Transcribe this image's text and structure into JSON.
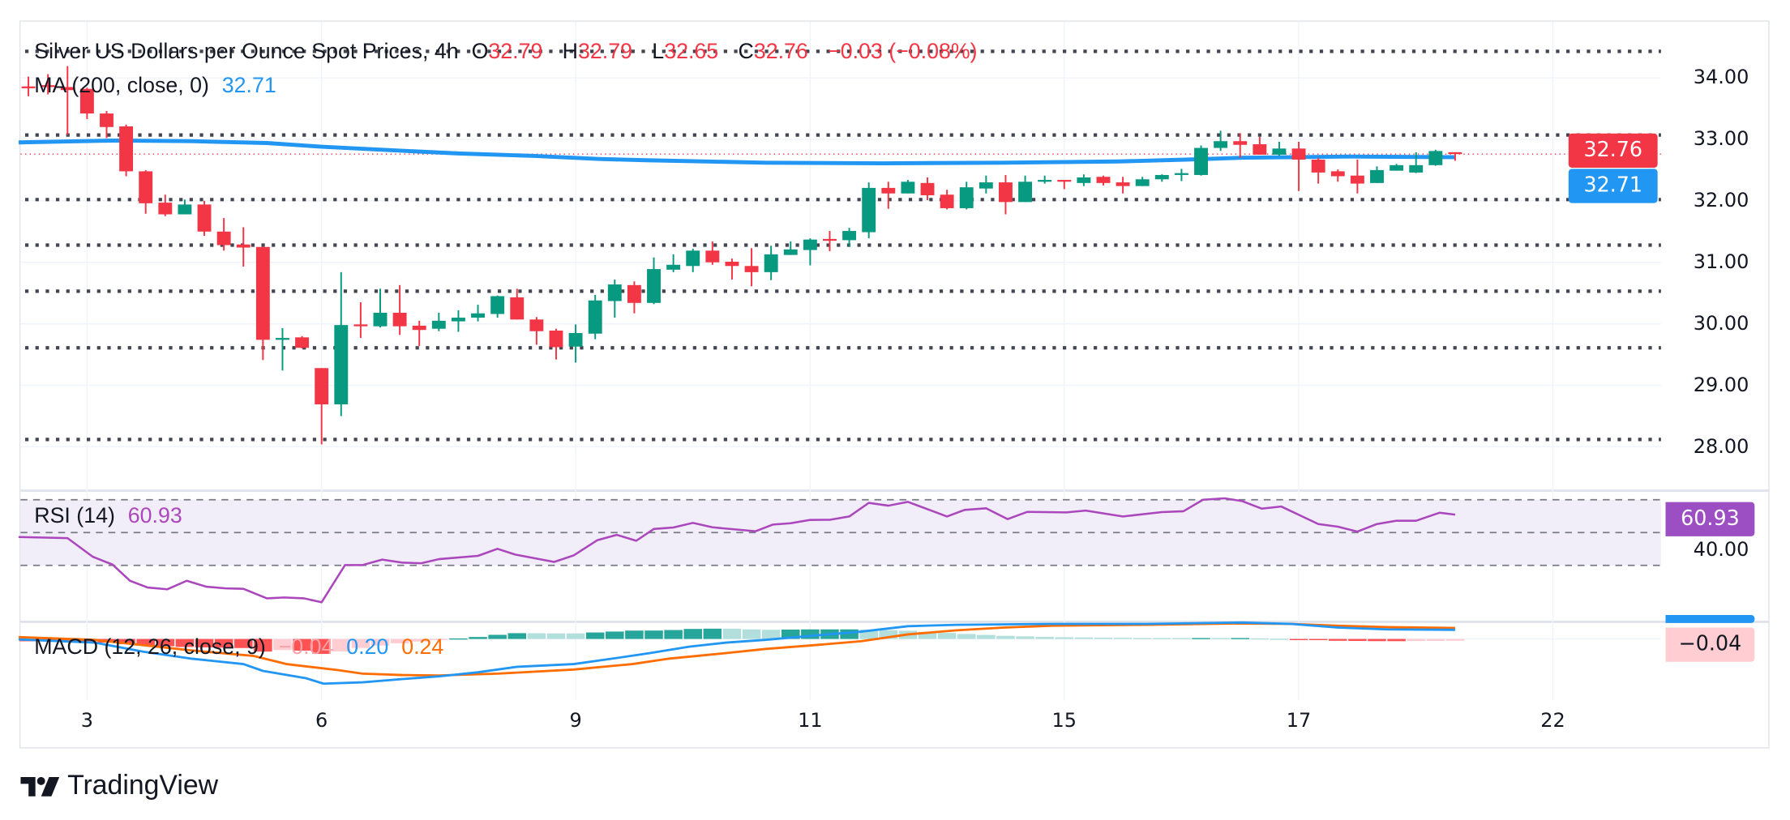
{
  "header": {
    "title": "Silver US Dollars per Ounce Spot Prices, 4h",
    "o_label": "O",
    "o": "32.79",
    "h_label": "H",
    "h": "32.79",
    "l_label": "L",
    "l": "32.65",
    "c_label": "C",
    "c": "32.76",
    "change": "−0.03 (−0.08%)"
  },
  "ma_legend": {
    "label": "MA (200, close, 0)",
    "value": "32.71"
  },
  "rsi_legend": {
    "label": "RSI (14)",
    "value": "60.93"
  },
  "macd_legend": {
    "label": "MACD (12, 26, close, 9)",
    "hist": "−0.04",
    "macd": "0.20",
    "signal": "0.24"
  },
  "price_axis": {
    "ticks": [
      {
        "label": "34.00",
        "value": 34
      },
      {
        "label": "33.00",
        "value": 33
      },
      {
        "label": "32.00",
        "value": 32
      },
      {
        "label": "31.00",
        "value": 31
      },
      {
        "label": "30.00",
        "value": 30
      },
      {
        "label": "29.00",
        "value": 29
      },
      {
        "label": "28.00",
        "value": 28
      }
    ],
    "last_price": "32.76",
    "ma_value": "32.71"
  },
  "rsi_axis": {
    "tick": "40.00",
    "value": "60.93"
  },
  "macd_axis": {
    "value": "−0.04"
  },
  "time_axis": [
    {
      "label": "3",
      "bar": 4
    },
    {
      "label": "6",
      "bar": 16
    },
    {
      "label": "9",
      "bar": 29
    },
    {
      "label": "11",
      "bar": 41
    },
    {
      "label": "15",
      "bar": 54
    },
    {
      "label": "17",
      "bar": 66
    },
    {
      "label": "22",
      "bar": 79
    }
  ],
  "brand": "TradingView",
  "colors": {
    "up": "#089981",
    "down": "#f23645",
    "ma": "#2196f3",
    "rsi": "#ab47bc",
    "macd": "#2196f3",
    "signal": "#ff6d00",
    "level": "#434651",
    "hist_up_strong": "#26a69a",
    "hist_up_weak": "#b2dfdb",
    "hist_down_strong": "#ff5252",
    "hist_down_weak": "#ffcdd2"
  },
  "chart_data": {
    "type": "candlestick",
    "title": "Silver US Dollars per Ounce Spot Prices, 4h",
    "ylim": [
      27.6,
      34.6
    ],
    "grid": true,
    "candles": [
      [
        33.86,
        34.02,
        33.7,
        33.84
      ],
      [
        33.88,
        34.06,
        33.73,
        33.86
      ],
      [
        33.85,
        34.19,
        33.07,
        33.8
      ],
      [
        33.82,
        33.84,
        33.33,
        33.42
      ],
      [
        33.42,
        33.46,
        33.02,
        33.2
      ],
      [
        33.21,
        33.24,
        32.4,
        32.48
      ],
      [
        32.48,
        32.5,
        31.79,
        31.96
      ],
      [
        31.97,
        32.1,
        31.75,
        31.78
      ],
      [
        31.78,
        32.02,
        31.78,
        31.94
      ],
      [
        31.94,
        32.0,
        31.43,
        31.5
      ],
      [
        31.5,
        31.72,
        31.19,
        31.28
      ],
      [
        31.29,
        31.57,
        30.93,
        31.24
      ],
      [
        31.25,
        31.25,
        29.41,
        29.74
      ],
      [
        29.74,
        29.93,
        29.24,
        29.77
      ],
      [
        29.78,
        29.8,
        29.6,
        29.61
      ],
      [
        29.28,
        29.28,
        28.04,
        28.69
      ],
      [
        28.69,
        30.84,
        28.5,
        29.98
      ],
      [
        29.99,
        30.35,
        29.77,
        29.98
      ],
      [
        29.96,
        30.57,
        29.94,
        30.18
      ],
      [
        30.18,
        30.63,
        29.82,
        29.96
      ],
      [
        29.97,
        30.05,
        29.64,
        29.9
      ],
      [
        29.92,
        30.18,
        29.88,
        30.05
      ],
      [
        30.04,
        30.22,
        29.87,
        30.1
      ],
      [
        30.1,
        30.31,
        30.04,
        30.17
      ],
      [
        30.16,
        30.46,
        30.1,
        30.45
      ],
      [
        30.43,
        30.57,
        30.07,
        30.07
      ],
      [
        30.07,
        30.11,
        29.66,
        29.88
      ],
      [
        29.89,
        29.92,
        29.42,
        29.62
      ],
      [
        29.63,
        29.99,
        29.37,
        29.85
      ],
      [
        29.84,
        30.47,
        29.75,
        30.38
      ],
      [
        30.37,
        30.72,
        30.1,
        30.64
      ],
      [
        30.63,
        30.69,
        30.17,
        30.34
      ],
      [
        30.34,
        31.08,
        30.32,
        30.89
      ],
      [
        30.88,
        31.13,
        30.84,
        30.96
      ],
      [
        30.94,
        31.22,
        30.84,
        31.19
      ],
      [
        31.19,
        31.34,
        30.96,
        31.0
      ],
      [
        31.01,
        31.06,
        30.72,
        30.94
      ],
      [
        30.94,
        31.23,
        30.61,
        30.84
      ],
      [
        30.84,
        31.27,
        30.71,
        31.13
      ],
      [
        31.12,
        31.34,
        31.12,
        31.21
      ],
      [
        31.2,
        31.39,
        30.95,
        31.37
      ],
      [
        31.38,
        31.51,
        31.18,
        31.36
      ],
      [
        31.36,
        31.56,
        31.25,
        31.51
      ],
      [
        31.49,
        32.3,
        31.39,
        32.21
      ],
      [
        32.21,
        32.31,
        31.87,
        32.12
      ],
      [
        32.12,
        32.34,
        32.12,
        32.31
      ],
      [
        32.29,
        32.38,
        32.01,
        32.09
      ],
      [
        32.1,
        32.18,
        31.86,
        31.88
      ],
      [
        31.88,
        32.31,
        31.86,
        32.22
      ],
      [
        32.2,
        32.41,
        32.12,
        32.3
      ],
      [
        32.3,
        32.42,
        31.78,
        31.98
      ],
      [
        31.98,
        32.41,
        31.98,
        32.31
      ],
      [
        32.32,
        32.41,
        32.28,
        32.34
      ],
      [
        32.34,
        32.34,
        32.19,
        32.32
      ],
      [
        32.29,
        32.43,
        32.24,
        32.38
      ],
      [
        32.39,
        32.41,
        32.25,
        32.29
      ],
      [
        32.3,
        32.39,
        32.12,
        32.24
      ],
      [
        32.24,
        32.39,
        32.24,
        32.35
      ],
      [
        32.35,
        32.43,
        32.31,
        32.42
      ],
      [
        32.44,
        32.52,
        32.32,
        32.45
      ],
      [
        32.42,
        32.9,
        32.41,
        32.86
      ],
      [
        32.86,
        33.14,
        32.81,
        32.97
      ],
      [
        32.97,
        33.1,
        32.7,
        32.91
      ],
      [
        32.92,
        33.04,
        32.75,
        32.75
      ],
      [
        32.75,
        32.96,
        32.73,
        32.85
      ],
      [
        32.85,
        32.96,
        32.16,
        32.67
      ],
      [
        32.67,
        32.7,
        32.28,
        32.46
      ],
      [
        32.48,
        32.51,
        32.31,
        32.4
      ],
      [
        32.41,
        32.67,
        32.12,
        32.28
      ],
      [
        32.29,
        32.56,
        32.29,
        32.5
      ],
      [
        32.49,
        32.6,
        32.49,
        32.58
      ],
      [
        32.46,
        32.79,
        32.45,
        32.58
      ],
      [
        32.58,
        32.83,
        32.57,
        32.81
      ],
      [
        32.79,
        32.79,
        32.65,
        32.76
      ]
    ],
    "candle_fields": [
      "open",
      "high",
      "low",
      "close"
    ],
    "horizontal_levels": [
      34.43,
      33.07,
      32.02,
      31.28,
      30.53,
      29.61,
      28.12
    ],
    "last_price": 32.76,
    "ma": {
      "name": "MA (200, close, 0)",
      "points": [
        [
          0.5,
          32.95
        ],
        [
          5.4,
          32.98
        ],
        [
          9.3,
          32.97
        ],
        [
          13.2,
          32.94
        ],
        [
          16,
          32.88
        ],
        [
          19.1,
          32.83
        ],
        [
          23,
          32.77
        ],
        [
          26.9,
          32.73
        ],
        [
          30.2,
          32.68
        ],
        [
          32.6,
          32.66
        ],
        [
          38.7,
          32.62
        ],
        [
          44.7,
          32.61
        ],
        [
          50.8,
          32.62
        ],
        [
          56.8,
          32.64
        ],
        [
          60.2,
          32.67
        ],
        [
          63.1,
          32.7
        ],
        [
          68.6,
          32.72
        ],
        [
          74,
          32.71
        ]
      ]
    },
    "rsi": {
      "name": "RSI (14)",
      "levels": [
        70,
        50,
        30
      ],
      "points": [
        [
          0.5,
          47.3
        ],
        [
          3,
          46.6
        ],
        [
          4.3,
          35.2
        ],
        [
          5.3,
          30.5
        ],
        [
          6.2,
          20.6
        ],
        [
          7.1,
          16.5
        ],
        [
          8.1,
          15.4
        ],
        [
          9.1,
          20.6
        ],
        [
          10.1,
          17
        ],
        [
          11.1,
          16
        ],
        [
          12,
          15.7
        ],
        [
          13.2,
          9.9
        ],
        [
          14.1,
          10.4
        ],
        [
          15.1,
          9.9
        ],
        [
          16,
          7.5
        ],
        [
          17.2,
          30.2
        ],
        [
          18.1,
          30.2
        ],
        [
          19.1,
          33.5
        ],
        [
          20.1,
          31.7
        ],
        [
          21.1,
          31.3
        ],
        [
          22,
          33.8
        ],
        [
          24,
          35.8
        ],
        [
          25,
          40.1
        ],
        [
          25.9,
          36.6
        ],
        [
          27.9,
          32.1
        ],
        [
          28.9,
          36.1
        ],
        [
          30.1,
          45.3
        ],
        [
          31.1,
          48.6
        ],
        [
          32.1,
          45
        ],
        [
          33,
          52.2
        ],
        [
          34,
          53.1
        ],
        [
          35,
          55.9
        ],
        [
          36,
          53.2
        ],
        [
          38.2,
          50.8
        ],
        [
          39.1,
          54.9
        ],
        [
          40,
          55.7
        ],
        [
          41,
          57.7
        ],
        [
          42,
          57.8
        ],
        [
          43,
          59.8
        ],
        [
          44,
          68.1
        ],
        [
          45,
          66.4
        ],
        [
          46,
          68.7
        ],
        [
          48,
          59.8
        ],
        [
          48.9,
          63.8
        ],
        [
          50,
          64.8
        ],
        [
          51.1,
          58.2
        ],
        [
          52.1,
          62.6
        ],
        [
          54.1,
          62.3
        ],
        [
          55.1,
          63.4
        ],
        [
          57,
          59.8
        ],
        [
          59,
          62.5
        ],
        [
          60.1,
          63
        ],
        [
          61.1,
          70
        ],
        [
          62.2,
          70.9
        ],
        [
          63.1,
          69.2
        ],
        [
          64.1,
          64.6
        ],
        [
          65.1,
          65.9
        ],
        [
          67,
          55.2
        ],
        [
          68,
          53.6
        ],
        [
          69,
          50.6
        ],
        [
          70,
          55.2
        ],
        [
          71,
          57.2
        ],
        [
          72,
          57.2
        ],
        [
          73.2,
          62.1
        ],
        [
          74,
          60.93
        ]
      ]
    },
    "macd": {
      "name": "MACD (12, 26, close, 9)",
      "macd_points": [
        [
          0.5,
          -0.01
        ],
        [
          4.4,
          -0.08
        ],
        [
          6.9,
          -0.28
        ],
        [
          9.3,
          -0.43
        ],
        [
          12,
          -0.55
        ],
        [
          13,
          -0.7
        ],
        [
          15.2,
          -0.86
        ],
        [
          16.1,
          -0.98
        ],
        [
          18.1,
          -0.95
        ],
        [
          20.1,
          -0.88
        ],
        [
          22,
          -0.82
        ],
        [
          24,
          -0.73
        ],
        [
          26,
          -0.61
        ],
        [
          28.9,
          -0.55
        ],
        [
          30.9,
          -0.43
        ],
        [
          32.8,
          -0.31
        ],
        [
          34.8,
          -0.17
        ],
        [
          36.7,
          -0.08
        ],
        [
          38.7,
          -0.02
        ],
        [
          41.1,
          0.07
        ],
        [
          43.6,
          0.16
        ],
        [
          46,
          0.28
        ],
        [
          48.5,
          0.31
        ],
        [
          53.4,
          0.33
        ],
        [
          58.2,
          0.33
        ],
        [
          63.1,
          0.36
        ],
        [
          65.6,
          0.33
        ],
        [
          68,
          0.25
        ],
        [
          70.5,
          0.21
        ],
        [
          74,
          0.2
        ]
      ],
      "signal_points": [
        [
          0.5,
          0.04
        ],
        [
          4.4,
          -0.02
        ],
        [
          9.3,
          -0.25
        ],
        [
          12.5,
          -0.37
        ],
        [
          14.2,
          -0.55
        ],
        [
          16.8,
          -0.68
        ],
        [
          18.1,
          -0.76
        ],
        [
          20.1,
          -0.79
        ],
        [
          22,
          -0.8
        ],
        [
          25,
          -0.76
        ],
        [
          28.9,
          -0.67
        ],
        [
          31.9,
          -0.55
        ],
        [
          33.8,
          -0.43
        ],
        [
          36.7,
          -0.31
        ],
        [
          38.7,
          -0.22
        ],
        [
          41.1,
          -0.14
        ],
        [
          43.6,
          -0.05
        ],
        [
          46,
          0.1
        ],
        [
          48.5,
          0.19
        ],
        [
          50.9,
          0.25
        ],
        [
          53.4,
          0.29
        ],
        [
          58.2,
          0.31
        ],
        [
          63.1,
          0.34
        ],
        [
          65.6,
          0.33
        ],
        [
          68,
          0.29
        ],
        [
          70.5,
          0.26
        ],
        [
          74,
          0.24
        ]
      ]
    }
  }
}
